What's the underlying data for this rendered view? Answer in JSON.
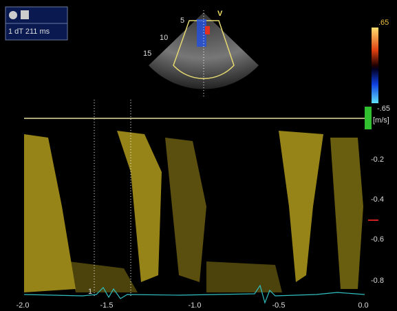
{
  "header": {
    "status": "1 dT 211 ms"
  },
  "sector": {
    "mode": "V",
    "depths": [
      "5",
      "10",
      "15"
    ]
  },
  "color_scale": {
    "top": ".65",
    "bottom": "-.65"
  },
  "spectrum": {
    "unit": "[m/s]",
    "velocity_labels": [
      "-0.2",
      "-0.4",
      "-0.6",
      "-0.8"
    ],
    "time_labels": [
      "-2.0",
      "-1.5",
      "-1.0",
      "-0.5",
      "0.0"
    ],
    "caliper_marker": "1"
  }
}
